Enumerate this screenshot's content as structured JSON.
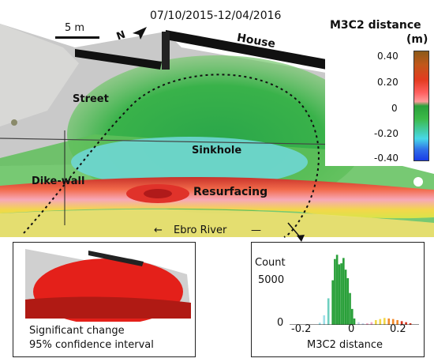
{
  "figure": {
    "date_range": "07/10/2015-12/04/2016",
    "scale_bar": "5 m",
    "north": "N",
    "labels": {
      "house": "House",
      "street": "Street",
      "sinkhole": "Sinkhole",
      "dike_wall": "Dike-wall",
      "resurfacing": "Resurfacing",
      "river": "Ebro River"
    },
    "colorbar": {
      "title_line1": "M3C2 distance",
      "title_line2": "(m)",
      "ticks": [
        "0.40",
        "0.20",
        "0",
        "-0.20",
        "-0.40"
      ],
      "colors": [
        "#8b5a1a",
        "#e33b1f",
        "#ff9a9a",
        "#1a9c2a",
        "#48d8e8",
        "#1a3ce6"
      ]
    },
    "inset_left": {
      "line1": "Significant change",
      "line2": "95% confidence interval"
    },
    "inset_right": {
      "ylabel": "Count",
      "xlabel": "M3C2 distance",
      "y_tick": "5000",
      "y_zero": "0",
      "x_ticks": [
        "-0.2",
        "0",
        "0.2"
      ]
    }
  },
  "chart_data": {
    "type": "histogram",
    "xlabel": "M3C2 distance",
    "ylabel": "Count",
    "xlim": [
      -0.3,
      0.3
    ],
    "ylim": [
      0,
      7000
    ],
    "x": [
      -0.16,
      -0.14,
      -0.12,
      -0.1,
      -0.09,
      -0.08,
      -0.07,
      -0.06,
      -0.05,
      -0.04,
      -0.03,
      -0.02,
      -0.01,
      0.0,
      0.02,
      0.04,
      0.06,
      0.08,
      0.1,
      0.12,
      0.14,
      0.16,
      0.18,
      0.2,
      0.22,
      0.24,
      0.26
    ],
    "values": [
      200,
      900,
      2500,
      4200,
      6200,
      6600,
      5700,
      5800,
      6300,
      5200,
      4400,
      3000,
      1500,
      600,
      250,
      150,
      150,
      250,
      450,
      550,
      650,
      600,
      550,
      450,
      350,
      250,
      150
    ]
  }
}
